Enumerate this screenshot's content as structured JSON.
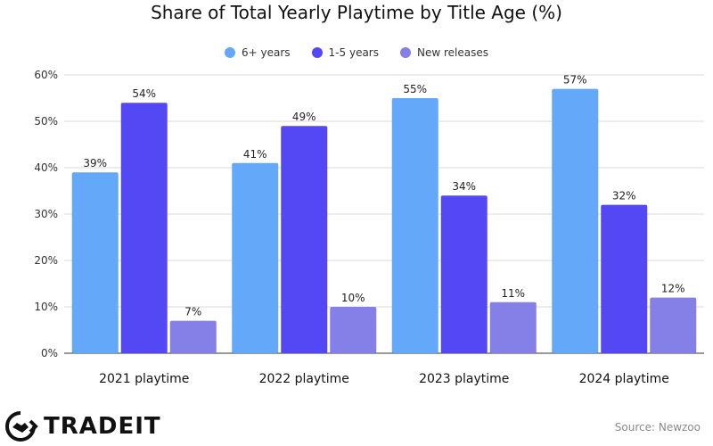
{
  "colors": {
    "series": [
      "#64a8fa",
      "#5448f5",
      "#8480e8"
    ],
    "grid": "#d9d9d9",
    "axis": "#333333"
  },
  "brand": {
    "name": "TRADEIT",
    "icon": "handshake-logo-icon"
  },
  "source_text": "Source: Newzoo",
  "chart_data": {
    "type": "bar",
    "title": "Share of Total Yearly Playtime by Title Age (%)",
    "xlabel": "",
    "ylabel": "",
    "categories": [
      "2021 playtime",
      "2022 playtime",
      "2023 playtime",
      "2024 playtime"
    ],
    "series": [
      {
        "name": "6+ years",
        "values": [
          39,
          41,
          55,
          57
        ],
        "labels": [
          "39%",
          "41%",
          "55%",
          "57%"
        ]
      },
      {
        "name": "1-5 years",
        "values": [
          54,
          49,
          34,
          32
        ],
        "labels": [
          "54%",
          "49%",
          "34%",
          "32%"
        ]
      },
      {
        "name": "New releases",
        "values": [
          7,
          10,
          11,
          12
        ],
        "labels": [
          "7%",
          "10%",
          "11%",
          "12%"
        ]
      }
    ],
    "ylim": [
      0,
      60
    ],
    "yticks": [
      0,
      10,
      20,
      30,
      40,
      50,
      60
    ],
    "ytick_labels": [
      "0%",
      "10%",
      "20%",
      "30%",
      "40%",
      "50%",
      "60%"
    ],
    "grid": true,
    "legend_position": "top-center"
  }
}
